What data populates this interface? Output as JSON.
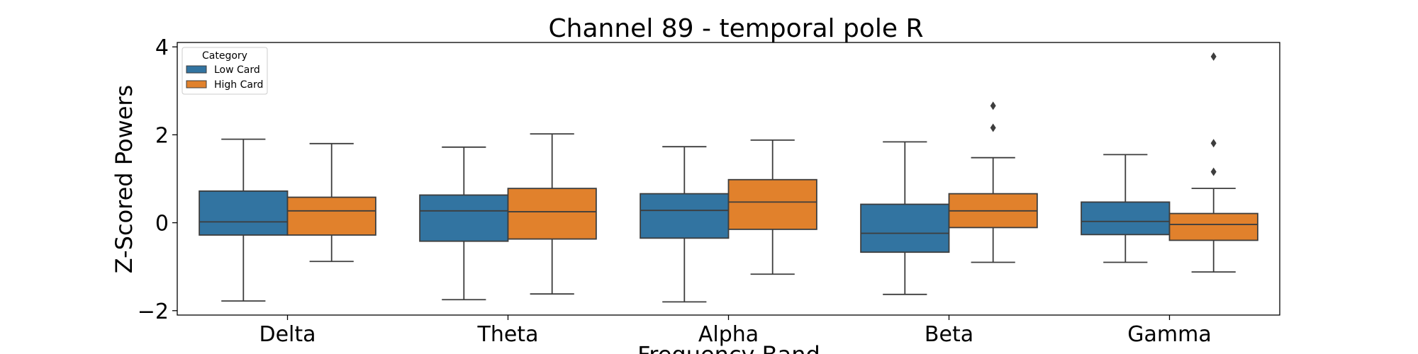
{
  "chart_data": {
    "type": "box",
    "title": "Channel 89 - temporal pole R",
    "xlabel": "Frequency Band",
    "ylabel": "Z-Scored Powers",
    "categories": [
      "Delta",
      "Theta",
      "Alpha",
      "Beta",
      "Gamma"
    ],
    "ylim": [
      -2.1,
      4.1
    ],
    "yticks": [
      -2,
      0,
      2,
      4
    ],
    "ytick_labels": [
      "−2",
      "0",
      "2",
      "4"
    ],
    "grid": false,
    "legend": {
      "title": "Category",
      "position": "top-left",
      "entries": [
        "Low Card",
        "High Card"
      ]
    },
    "series": [
      {
        "name": "Low Card",
        "color": "#3274a1",
        "boxes": [
          {
            "whisker_low": -1.78,
            "q1": -0.28,
            "median": 0.02,
            "q3": 0.72,
            "whisker_high": 1.9,
            "outliers": []
          },
          {
            "whisker_low": -1.75,
            "q1": -0.42,
            "median": 0.27,
            "q3": 0.63,
            "whisker_high": 1.72,
            "outliers": []
          },
          {
            "whisker_low": -1.8,
            "q1": -0.35,
            "median": 0.28,
            "q3": 0.66,
            "whisker_high": 1.73,
            "outliers": []
          },
          {
            "whisker_low": -1.63,
            "q1": -0.67,
            "median": -0.24,
            "q3": 0.42,
            "whisker_high": 1.84,
            "outliers": []
          },
          {
            "whisker_low": -0.9,
            "q1": -0.27,
            "median": 0.03,
            "q3": 0.47,
            "whisker_high": 1.55,
            "outliers": []
          }
        ]
      },
      {
        "name": "High Card",
        "color": "#e1812c",
        "boxes": [
          {
            "whisker_low": -0.88,
            "q1": -0.28,
            "median": 0.27,
            "q3": 0.58,
            "whisker_high": 1.8,
            "outliers": []
          },
          {
            "whisker_low": -1.62,
            "q1": -0.37,
            "median": 0.25,
            "q3": 0.78,
            "whisker_high": 2.02,
            "outliers": []
          },
          {
            "whisker_low": -1.17,
            "q1": -0.15,
            "median": 0.47,
            "q3": 0.98,
            "whisker_high": 1.88,
            "outliers": []
          },
          {
            "whisker_low": -0.9,
            "q1": -0.11,
            "median": 0.27,
            "q3": 0.66,
            "whisker_high": 1.48,
            "outliers": [
              2.16,
              2.66
            ]
          },
          {
            "whisker_low": -1.12,
            "q1": -0.4,
            "median": -0.04,
            "q3": 0.21,
            "whisker_high": 0.78,
            "outliers": [
              1.16,
              1.81,
              3.78
            ]
          }
        ]
      }
    ]
  }
}
